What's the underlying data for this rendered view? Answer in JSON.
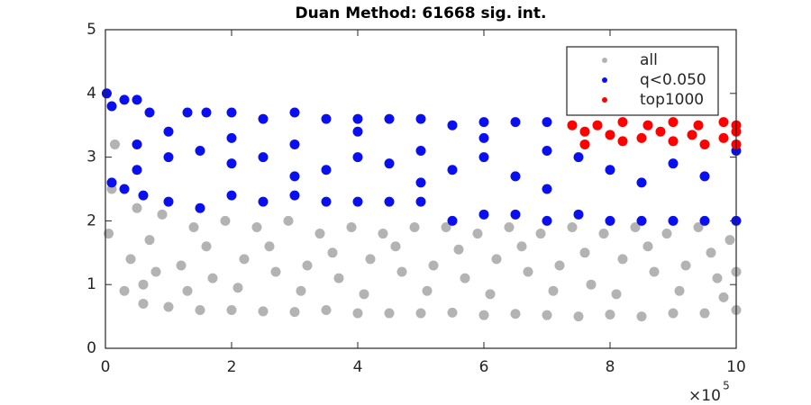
{
  "chart_data": {
    "type": "scatter",
    "title": "Duan Method: 61668 sig. int.",
    "xlim": [
      0,
      10
    ],
    "ylim": [
      0,
      5
    ],
    "xticks": [
      0,
      2,
      4,
      6,
      8,
      10
    ],
    "yticks": [
      0,
      1,
      2,
      3,
      4,
      5
    ],
    "x_multiplier": {
      "base": "×10",
      "exponent": "5"
    },
    "legend": "northeast",
    "series": [
      {
        "name": "all",
        "color": "#b3b3b3",
        "x": [
          0.05,
          0.3,
          0.6,
          1,
          1.5,
          2,
          2.5,
          3,
          3.5,
          4,
          4.5,
          5,
          5.5,
          6,
          6.5,
          7,
          7.5,
          8,
          8.5,
          9,
          9.5,
          10,
          0.1,
          0.4,
          0.8,
          1.2,
          1.7,
          2.2,
          2.7,
          3.2,
          3.7,
          4.2,
          4.7,
          5.2,
          5.7,
          6.2,
          6.7,
          7.2,
          7.7,
          8.2,
          8.7,
          9.2,
          9.7,
          10,
          0.15,
          0.5,
          0.9,
          1.4,
          1.9,
          2.4,
          2.9,
          3.4,
          3.9,
          4.4,
          4.9,
          5.4,
          5.9,
          6.4,
          6.9,
          7.4,
          7.9,
          8.4,
          8.9,
          9.4,
          9.9,
          0.6,
          1.3,
          2.1,
          3.1,
          4.1,
          5.1,
          6.1,
          7.1,
          8.1,
          9.1,
          9.8,
          0.7,
          1.6,
          2.6,
          3.6,
          4.6,
          5.6,
          6.6,
          7.6,
          8.6,
          9.6
        ],
        "values": [
          1.8,
          0.9,
          0.7,
          0.65,
          0.6,
          0.6,
          0.58,
          0.57,
          0.6,
          0.55,
          0.55,
          0.55,
          0.56,
          0.52,
          0.54,
          0.52,
          0.5,
          0.53,
          0.5,
          0.55,
          0.55,
          0.6,
          2.5,
          1.4,
          1.2,
          1.3,
          1.1,
          1.4,
          1.2,
          1.3,
          1.1,
          1.4,
          1.2,
          1.3,
          1.1,
          1.4,
          1.2,
          1.3,
          1.0,
          1.4,
          1.2,
          1.3,
          1.1,
          1.2,
          3.2,
          2.2,
          2.1,
          1.9,
          2.0,
          1.9,
          2.0,
          1.8,
          1.9,
          1.8,
          1.9,
          1.9,
          1.8,
          1.9,
          1.8,
          1.9,
          1.8,
          1.9,
          1.8,
          1.9,
          1.7,
          1.0,
          0.9,
          0.95,
          0.9,
          0.85,
          0.9,
          0.85,
          0.9,
          0.85,
          0.9,
          0.8,
          1.7,
          1.6,
          1.6,
          1.5,
          1.6,
          1.55,
          1.6,
          1.5,
          1.6,
          1.5
        ]
      },
      {
        "name": "q<0.050",
        "color": "#0a0ff0",
        "x": [
          0.02,
          0.1,
          0.3,
          0.5,
          0.7,
          0.1,
          0.3,
          0.6,
          1,
          1.3,
          1.6,
          2,
          2.5,
          3,
          3.5,
          4,
          4.5,
          5,
          5.5,
          6,
          6.5,
          7,
          1.5,
          2,
          2.5,
          3,
          3.5,
          4,
          4.5,
          5,
          5.5,
          6,
          6.5,
          7,
          7.5,
          8,
          8.5,
          9,
          9.5,
          10,
          7.5,
          8,
          8.5,
          9,
          9.5,
          10,
          0.5,
          1,
          1.5,
          2,
          2.5,
          3,
          3.5,
          4,
          4.5,
          5,
          5.5,
          6,
          6.5,
          7,
          0.5,
          1,
          2,
          3,
          4,
          5,
          6,
          7
        ],
        "values": [
          4.0,
          3.8,
          3.9,
          3.9,
          3.7,
          2.6,
          2.5,
          2.4,
          2.3,
          3.7,
          3.7,
          3.7,
          3.6,
          3.7,
          3.6,
          3.6,
          3.6,
          3.6,
          3.5,
          3.55,
          3.55,
          3.55,
          2.2,
          2.4,
          2.3,
          2.4,
          2.3,
          2.3,
          2.3,
          2.3,
          2.0,
          2.1,
          2.1,
          2.0,
          2.1,
          2.0,
          2.0,
          2.0,
          2.0,
          2.0,
          3.0,
          2.8,
          2.6,
          2.9,
          2.7,
          3.1,
          3.2,
          3.0,
          3.1,
          2.9,
          3.0,
          3.2,
          2.8,
          3.0,
          2.9,
          3.1,
          2.8,
          3.0,
          2.7,
          3.1,
          2.8,
          3.4,
          3.3,
          2.7,
          3.4,
          2.6,
          3.3,
          2.5
        ]
      },
      {
        "name": "top1000",
        "color": "#ff0000",
        "x": [
          7.4,
          7.8,
          8.2,
          8.6,
          9,
          9.4,
          9.8,
          10,
          7.6,
          8,
          8.5,
          9,
          9.5,
          10,
          7.6,
          8.2,
          8.8,
          9.3,
          9.8,
          10
        ],
        "values": [
          3.5,
          3.5,
          3.55,
          3.5,
          3.55,
          3.5,
          3.55,
          3.5,
          3.4,
          3.35,
          3.3,
          3.25,
          3.2,
          3.2,
          3.2,
          3.25,
          3.4,
          3.35,
          3.3,
          3.4
        ]
      }
    ]
  }
}
